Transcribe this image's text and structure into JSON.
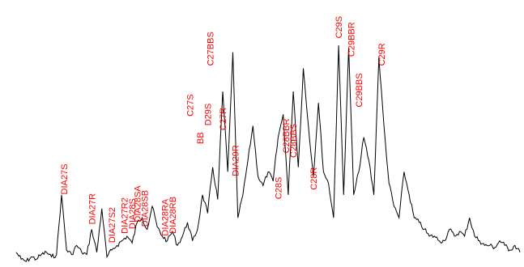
{
  "chart_data": {
    "type": "line",
    "title": "",
    "xlabel": "",
    "ylabel": "",
    "xlim": [
      0,
      100
    ],
    "ylim": [
      0,
      100
    ],
    "grid": false,
    "axes_visible": false,
    "colors": {
      "trace": "#000000",
      "labels": "#ff0000"
    },
    "x": [
      0,
      1,
      2,
      3,
      4,
      5,
      6,
      7,
      8,
      9,
      10,
      11,
      12,
      13,
      14,
      15,
      16,
      17,
      18,
      19,
      20,
      21,
      22,
      23,
      24,
      25,
      26,
      27,
      28,
      29,
      30,
      31,
      32,
      33,
      34,
      35,
      36,
      37,
      38,
      39,
      40,
      41,
      42,
      43,
      44,
      45,
      46,
      47,
      48,
      49,
      50,
      51,
      52,
      53,
      54,
      55,
      56,
      57,
      58,
      59,
      60,
      61,
      62,
      63,
      64,
      65,
      66,
      67,
      68,
      69,
      70,
      71,
      72,
      73,
      74,
      75,
      76,
      77,
      78,
      79,
      80,
      81,
      82,
      83,
      84,
      85,
      86,
      87,
      88,
      89,
      90,
      91,
      92,
      93,
      94,
      95,
      96,
      97,
      98,
      99,
      100
    ],
    "series": [
      {
        "values": [
          5,
          2,
          1,
          3,
          2,
          4,
          5,
          3,
          4,
          30,
          6,
          4,
          8,
          5,
          4,
          15,
          5,
          24,
          3,
          6,
          8,
          10,
          12,
          9,
          18,
          20,
          15,
          25,
          16,
          12,
          10,
          14,
          8,
          12,
          18,
          10,
          15,
          30,
          22,
          42,
          28,
          75,
          40,
          92,
          20,
          30,
          45,
          60,
          38,
          34,
          40,
          36,
          55,
          65,
          30,
          75,
          42,
          85,
          60,
          38,
          70,
          40,
          35,
          20,
          95,
          30,
          94,
          30,
          40,
          55,
          45,
          30,
          90,
          60,
          35,
          25,
          20,
          40,
          30,
          20,
          18,
          15,
          12,
          12,
          10,
          10,
          15,
          12,
          14,
          12,
          20,
          12,
          10,
          8,
          8,
          7,
          10,
          8,
          6,
          8,
          5
        ]
      }
    ],
    "peaks": [
      {
        "label": "DIA27S",
        "x": 9.5,
        "y": 28
      },
      {
        "label": "DIA27R",
        "x": 15,
        "y": 15
      },
      {
        "label": "DIA27S2",
        "x": 19,
        "y": 7
      },
      {
        "label": "DIA27R2",
        "x": 21.5,
        "y": 11
      },
      {
        "label": "DIA28S",
        "x": 23,
        "y": 13
      },
      {
        "label": "DIA28SA",
        "x": 24,
        "y": 16
      },
      {
        "label": "DIA28SB",
        "x": 25.5,
        "y": 14
      },
      {
        "label": "DIA28RA",
        "x": 29.5,
        "y": 10
      },
      {
        "label": "DIA28RB",
        "x": 31,
        "y": 11
      },
      {
        "label": "C27S",
        "x": 34.5,
        "y": 62
      },
      {
        "label": "BB",
        "x": 36.5,
        "y": 50
      },
      {
        "label": "D29S",
        "x": 38,
        "y": 58
      },
      {
        "label": "C27BBS",
        "x": 38.5,
        "y": 84
      },
      {
        "label": "C27R",
        "x": 41,
        "y": 56
      },
      {
        "label": "DIA29R",
        "x": 43.5,
        "y": 36
      },
      {
        "label": "C28S",
        "x": 52,
        "y": 26
      },
      {
        "label": "C28BBR",
        "x": 53.5,
        "y": 46
      },
      {
        "label": "C28BBS",
        "x": 55,
        "y": 44
      },
      {
        "label": "C28R",
        "x": 59,
        "y": 30
      },
      {
        "label": "C29S",
        "x": 64,
        "y": 96
      },
      {
        "label": "C29BBR",
        "x": 66.5,
        "y": 88
      },
      {
        "label": "C29BBS",
        "x": 68,
        "y": 66
      },
      {
        "label": "C29R",
        "x": 72.5,
        "y": 84
      }
    ]
  }
}
